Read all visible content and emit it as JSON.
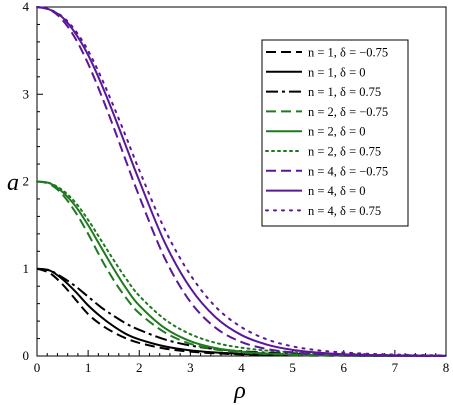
{
  "chart_data": {
    "type": "line",
    "xlabel": "ρ",
    "ylabel": "a",
    "xlim": [
      0,
      8
    ],
    "ylim": [
      0,
      4
    ],
    "x_ticks": [
      0,
      1,
      2,
      3,
      4,
      5,
      6,
      7,
      8
    ],
    "y_ticks": [
      0,
      1,
      2,
      3,
      4
    ],
    "grid": false,
    "legend_position": "top-right",
    "x": [
      0,
      0.25,
      0.5,
      0.75,
      1,
      1.25,
      1.5,
      1.75,
      2,
      2.5,
      3,
      3.5,
      4,
      4.5,
      5,
      5.5,
      6,
      6.5,
      7,
      7.5,
      8
    ],
    "series": [
      {
        "name": "n = 1, δ = −0.75",
        "color": "#000000",
        "dash": "10,5",
        "values": [
          1.0,
          0.95,
          0.82,
          0.65,
          0.48,
          0.36,
          0.27,
          0.2,
          0.15,
          0.085,
          0.05,
          0.03,
          0.018,
          0.011,
          0.007,
          0.004,
          0.003,
          0.002,
          0.001,
          0.001,
          0.0
        ]
      },
      {
        "name": "n = 1, δ = 0",
        "color": "#000000",
        "dash": "",
        "values": [
          1.0,
          0.98,
          0.88,
          0.74,
          0.58,
          0.45,
          0.34,
          0.25,
          0.19,
          0.11,
          0.065,
          0.04,
          0.025,
          0.016,
          0.01,
          0.007,
          0.005,
          0.003,
          0.002,
          0.001,
          0.001
        ]
      },
      {
        "name": "n = 1, δ = 0.75",
        "color": "#000000",
        "dash": "12,4,3,4",
        "values": [
          1.0,
          0.98,
          0.9,
          0.8,
          0.68,
          0.56,
          0.46,
          0.37,
          0.3,
          0.19,
          0.12,
          0.08,
          0.055,
          0.038,
          0.026,
          0.018,
          0.013,
          0.009,
          0.006,
          0.004,
          0.003
        ]
      },
      {
        "name": "n = 2, δ = −0.75",
        "color": "#1f7a1f",
        "dash": "10,5",
        "values": [
          2.0,
          1.97,
          1.85,
          1.65,
          1.4,
          1.12,
          0.87,
          0.66,
          0.49,
          0.27,
          0.14,
          0.075,
          0.04,
          0.022,
          0.012,
          0.007,
          0.004,
          0.002,
          0.001,
          0.001,
          0.0
        ]
      },
      {
        "name": "n = 2, δ = 0",
        "color": "#1f7a1f",
        "dash": "",
        "values": [
          2.0,
          1.98,
          1.88,
          1.72,
          1.5,
          1.25,
          1.0,
          0.77,
          0.58,
          0.32,
          0.17,
          0.09,
          0.05,
          0.028,
          0.016,
          0.009,
          0.005,
          0.003,
          0.002,
          0.001,
          0.001
        ]
      },
      {
        "name": "n = 2, δ = 0.75",
        "color": "#1f7a1f",
        "dash": "2,4",
        "values": [
          2.0,
          1.98,
          1.9,
          1.76,
          1.56,
          1.33,
          1.1,
          0.88,
          0.69,
          0.42,
          0.25,
          0.15,
          0.095,
          0.062,
          0.042,
          0.029,
          0.02,
          0.014,
          0.01,
          0.007,
          0.005
        ]
      },
      {
        "name": "n = 4, δ = −0.75",
        "color": "#5b169a",
        "dash": "10,5",
        "values": [
          4.0,
          3.97,
          3.85,
          3.64,
          3.35,
          3.0,
          2.62,
          2.22,
          1.83,
          1.12,
          0.62,
          0.32,
          0.16,
          0.08,
          0.04,
          0.02,
          0.01,
          0.005,
          0.003,
          0.001,
          0.0
        ]
      },
      {
        "name": "n = 4, δ = 0",
        "color": "#5b169a",
        "dash": "",
        "values": [
          4.0,
          3.97,
          3.88,
          3.7,
          3.45,
          3.13,
          2.77,
          2.39,
          2.01,
          1.3,
          0.78,
          0.44,
          0.24,
          0.13,
          0.07,
          0.038,
          0.02,
          0.011,
          0.006,
          0.003,
          0.002
        ]
      },
      {
        "name": "n = 4, δ = 0.75",
        "color": "#5b169a",
        "dash": "2,6",
        "values": [
          4.0,
          3.97,
          3.89,
          3.73,
          3.5,
          3.2,
          2.86,
          2.5,
          2.13,
          1.45,
          0.93,
          0.56,
          0.33,
          0.19,
          0.11,
          0.065,
          0.04,
          0.025,
          0.016,
          0.01,
          0.006
        ]
      }
    ]
  }
}
